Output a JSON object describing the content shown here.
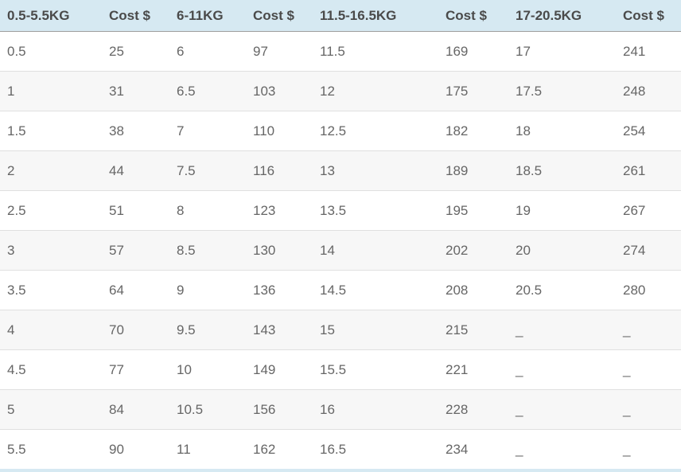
{
  "chart_data": {
    "type": "table",
    "columns": [
      "0.5-5.5KG",
      "Cost $",
      "6-11KG",
      "Cost $",
      "11.5-16.5KG",
      "Cost $",
      "17-20.5KG",
      "Cost $"
    ],
    "rows": [
      [
        "0.5",
        "25",
        "6",
        "97",
        "11.5",
        "169",
        "17",
        "241"
      ],
      [
        "1",
        "31",
        "6.5",
        "103",
        "12",
        "175",
        "17.5",
        "248"
      ],
      [
        "1.5",
        "38",
        "7",
        "110",
        "12.5",
        "182",
        "18",
        "254"
      ],
      [
        "2",
        "44",
        "7.5",
        "116",
        "13",
        "189",
        "18.5",
        "261"
      ],
      [
        "2.5",
        "51",
        "8",
        "123",
        "13.5",
        "195",
        "19",
        "267"
      ],
      [
        "3",
        "57",
        "8.5",
        "130",
        "14",
        "202",
        "20",
        "274"
      ],
      [
        "3.5",
        "64",
        "9",
        "136",
        "14.5",
        "208",
        "20.5",
        "280"
      ],
      [
        "4",
        "70",
        "9.5",
        "143",
        "15",
        "215",
        "_",
        "_"
      ],
      [
        "4.5",
        "77",
        "10",
        "149",
        "15.5",
        "221",
        "_",
        "_"
      ],
      [
        "5",
        "84",
        "10.5",
        "156",
        "16",
        "228",
        "_",
        "_"
      ],
      [
        "5.5",
        "90",
        "11",
        "162",
        "16.5",
        "234",
        "_",
        "_"
      ]
    ]
  },
  "colors": {
    "header_bg": "#d6e9f2",
    "header_text": "#4a4a4a",
    "header_border": "#9e9e9e",
    "body_text": "#666666",
    "row_border": "#e0e0e0",
    "alt_row_bg": "#f7f7f7",
    "bottom_strip_bg": "#d6e9f2"
  }
}
